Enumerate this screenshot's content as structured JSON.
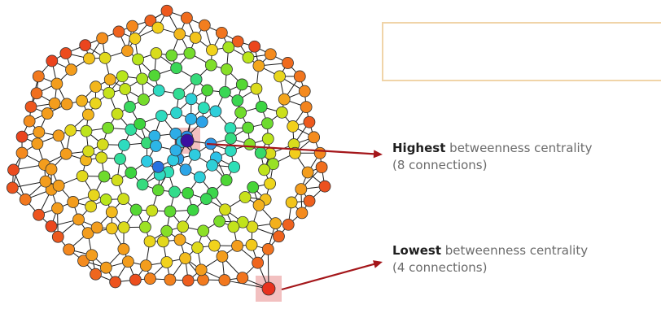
{
  "annotations": {
    "highest": {
      "bold": "Highest",
      "rest": "betweenness centrality",
      "sub": "(8 connections)"
    },
    "lowest": {
      "bold": "Lowest",
      "rest": "betweenness centrality",
      "sub": "(4 connections)"
    }
  },
  "colors": {
    "arrow": "#a4161a",
    "highlight": "#f2c0c0",
    "edge": "#1a1a1a",
    "node_scale_low_to_high": [
      "#e8321e",
      "#f48a1e",
      "#f2d31c",
      "#b8e61c",
      "#3ed43a",
      "#2ee0b4",
      "#2ec8e8",
      "#2b8fe6",
      "#2040d8",
      "#3a0fa0"
    ]
  },
  "network": {
    "node_encoding": "color = betweenness centrality (red lowest, blue/purple highest)"
  }
}
